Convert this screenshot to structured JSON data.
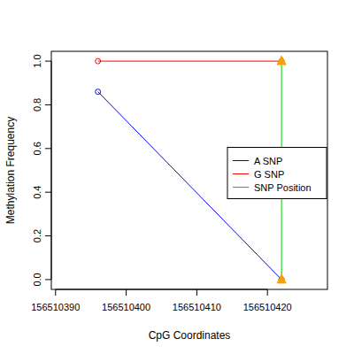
{
  "chart_data": {
    "type": "line",
    "x_label": "CpG Coordinates",
    "y_label": "Methylation Frequency",
    "xlim": [
      156510389.4,
      156510428.5
    ],
    "ylim": [
      -0.045,
      1.045
    ],
    "xticks": [
      156510390,
      156510400,
      156510410,
      156510420
    ],
    "yticks": [
      {
        "value": 0,
        "label": "0.0"
      },
      {
        "value": 0.2,
        "label": "0.2"
      },
      {
        "value": 0.4,
        "label": "0.4"
      },
      {
        "value": 0.6,
        "label": "0.6"
      },
      {
        "value": 0.8,
        "label": "0.8"
      },
      {
        "value": 1,
        "label": "1.0"
      }
    ],
    "legend": "right",
    "series": [
      {
        "name": "A SNP",
        "color": "#0000ff",
        "marker": "circle",
        "x": [
          156510396,
          156510422
        ],
        "values": [
          0.86,
          0
        ]
      },
      {
        "name": "G SNP",
        "color": "#ff0000",
        "marker": "circle",
        "x": [
          156510396,
          156510422
        ],
        "values": [
          1,
          1
        ]
      },
      {
        "name": "SNP Position",
        "color": "#00cc00",
        "marker": "triangle",
        "x": [
          156510422,
          156510422
        ],
        "values": [
          0,
          1
        ]
      }
    ]
  }
}
